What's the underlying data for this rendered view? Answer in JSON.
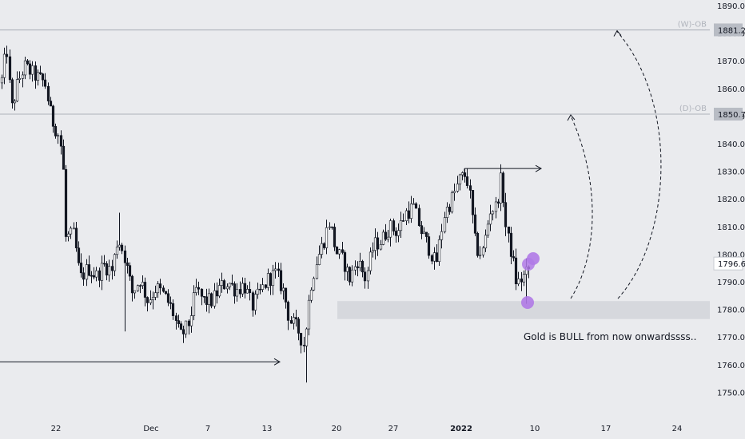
{
  "chart_data": {
    "type": "candlestick",
    "title": "",
    "xlabel": "",
    "ylabel": "",
    "ylim": [
      1746,
      1891
    ],
    "y_ticks": [
      1750,
      1760,
      1770,
      1780,
      1790,
      1800,
      1810,
      1820,
      1830,
      1840,
      1850,
      1860,
      1870,
      1880,
      1890
    ],
    "x_ticks": [
      "22",
      "Dec",
      "7",
      "13",
      "20",
      "27",
      "2022",
      "10",
      "17",
      "24"
    ],
    "grid": false,
    "colors": {
      "up": "#ffffff",
      "down": "#131722",
      "background": "#eaebee",
      "line": "#9aa0aa",
      "marker": "#b07ae6"
    },
    "price_levels": [
      {
        "label": "(W)-OB",
        "value": 1881.2,
        "value_text": "1881.2"
      },
      {
        "label": "(D)-OB",
        "value": 1850.7,
        "value_text": "1850.7"
      }
    ],
    "current_price": {
      "value": 1796.6,
      "value_text": "1796.6"
    },
    "demand_zone": {
      "from": 1776.5,
      "to": 1783
    },
    "annotations": [
      {
        "text": "Gold is BULL from now onwardssss.."
      }
    ],
    "key_points": [
      {
        "type": "swing-high",
        "value": 1831
      },
      {
        "type": "swing-low",
        "value": 1761
      }
    ]
  }
}
